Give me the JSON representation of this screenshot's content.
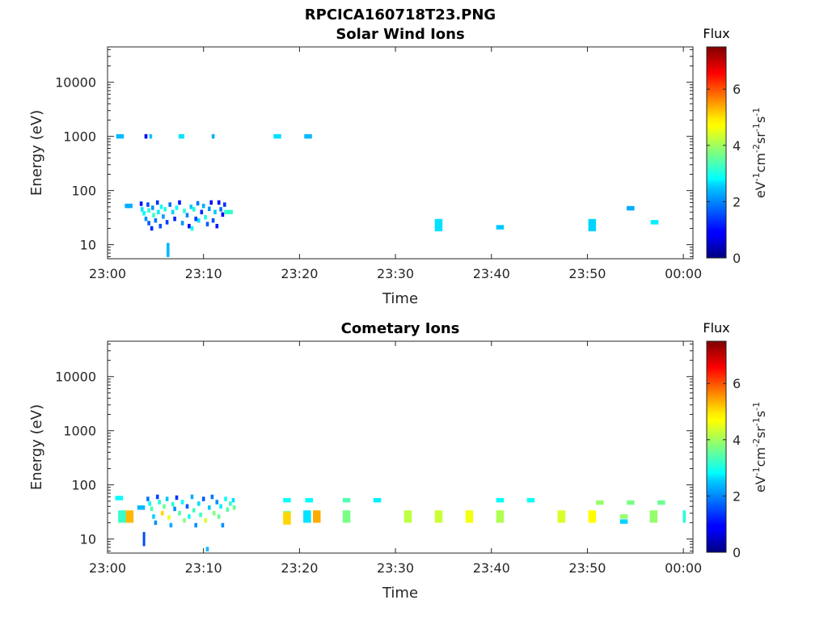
{
  "figure": {
    "title": "RPCICA160718T23.PNG"
  },
  "colorbar": {
    "label_main": "eV",
    "sup1": "-1",
    "cm": "cm",
    "sup2": "-2",
    "sr": "sr",
    "sup3": "-1",
    "s": "s",
    "sup4": "-1",
    "title": "Flux",
    "ticks": [
      "0",
      "2",
      "4",
      "6"
    ],
    "range": [
      0,
      7.5
    ],
    "colormap": "jet"
  },
  "chart_data": [
    {
      "type": "heatmap",
      "title": "Solar Wind Ions",
      "xlabel": "Time",
      "ylabel": "Energy (eV)",
      "xticks": [
        "23:00",
        "23:10",
        "23:20",
        "23:30",
        "23:40",
        "23:50",
        "00:00"
      ],
      "xlim_minutes": [
        0,
        61
      ],
      "yticks": [
        "10",
        "100",
        "1000",
        "10000"
      ],
      "ylim": [
        5.5,
        45000
      ],
      "yscale": "log",
      "cells": [
        {
          "t": 1.3,
          "e": 1000,
          "f": 2.3,
          "dt": 0.8
        },
        {
          "t": 2.2,
          "e": 52,
          "f": 2.2,
          "dt": 0.8
        },
        {
          "t": 3.5,
          "e": 57,
          "f": 1.0
        },
        {
          "t": 3.6,
          "e": 45,
          "f": 2.6
        },
        {
          "t": 3.8,
          "e": 38,
          "f": 2.8
        },
        {
          "t": 4.0,
          "e": 30,
          "f": 2.0
        },
        {
          "t": 4.0,
          "e": 1000,
          "f": 1.0
        },
        {
          "t": 4.2,
          "e": 55,
          "f": 1.5
        },
        {
          "t": 4.3,
          "e": 25,
          "f": 1.6
        },
        {
          "t": 4.3,
          "e": 43,
          "f": 3.0
        },
        {
          "t": 4.5,
          "e": 1000,
          "f": 2.4
        },
        {
          "t": 4.6,
          "e": 20,
          "f": 1.2
        },
        {
          "t": 4.7,
          "e": 48,
          "f": 2.0
        },
        {
          "t": 4.8,
          "e": 35,
          "f": 3.2
        },
        {
          "t": 5.0,
          "e": 28,
          "f": 1.8
        },
        {
          "t": 5.2,
          "e": 60,
          "f": 1.3
        },
        {
          "t": 5.3,
          "e": 40,
          "f": 2.7
        },
        {
          "t": 5.5,
          "e": 22,
          "f": 1.5
        },
        {
          "t": 5.6,
          "e": 50,
          "f": 2.9
        },
        {
          "t": 5.8,
          "e": 33,
          "f": 2.1
        },
        {
          "t": 6.0,
          "e": 45,
          "f": 3.0
        },
        {
          "t": 6.2,
          "e": 26,
          "f": 1.4
        },
        {
          "t": 6.3,
          "e": 8,
          "f": 2.3,
          "de": 1.35
        },
        {
          "t": 6.5,
          "e": 55,
          "f": 1.7
        },
        {
          "t": 6.8,
          "e": 40,
          "f": 2.5
        },
        {
          "t": 7.0,
          "e": 30,
          "f": 1.2
        },
        {
          "t": 7.2,
          "e": 48,
          "f": 2.8
        },
        {
          "t": 7.5,
          "e": 60,
          "f": 1.1
        },
        {
          "t": 7.7,
          "e": 1000,
          "f": 2.6,
          "dt": 0.6
        },
        {
          "t": 7.8,
          "e": 25,
          "f": 2.0
        },
        {
          "t": 8.0,
          "e": 42,
          "f": 3.1
        },
        {
          "t": 8.3,
          "e": 35,
          "f": 1.9
        },
        {
          "t": 8.5,
          "e": 22,
          "f": 1.0
        },
        {
          "t": 8.7,
          "e": 50,
          "f": 2.4
        },
        {
          "t": 8.8,
          "e": 20,
          "f": 2.9
        },
        {
          "t": 9.0,
          "e": 45,
          "f": 3.0
        },
        {
          "t": 9.2,
          "e": 30,
          "f": 1.4
        },
        {
          "t": 9.4,
          "e": 58,
          "f": 1.8
        },
        {
          "t": 9.5,
          "e": 28,
          "f": 2.6
        },
        {
          "t": 9.8,
          "e": 40,
          "f": 1.2
        },
        {
          "t": 10.0,
          "e": 52,
          "f": 2.2
        },
        {
          "t": 10.2,
          "e": 32,
          "f": 3.0
        },
        {
          "t": 10.4,
          "e": 24,
          "f": 1.6
        },
        {
          "t": 10.6,
          "e": 46,
          "f": 2.0
        },
        {
          "t": 10.8,
          "e": 60,
          "f": 1.0
        },
        {
          "t": 11.0,
          "e": 1000,
          "f": 2.2
        },
        {
          "t": 11.0,
          "e": 28,
          "f": 1.5
        },
        {
          "t": 11.2,
          "e": 40,
          "f": 2.4
        },
        {
          "t": 11.4,
          "e": 22,
          "f": 1.1
        },
        {
          "t": 11.6,
          "e": 60,
          "f": 1.0
        },
        {
          "t": 11.8,
          "e": 45,
          "f": 1.8
        },
        {
          "t": 12.0,
          "e": 36,
          "f": 1.0
        },
        {
          "t": 12.2,
          "e": 55,
          "f": 1.3
        },
        {
          "t": 12.6,
          "e": 40,
          "f": 3.2,
          "dt": 0.9
        },
        {
          "t": 17.7,
          "e": 1000,
          "f": 2.6,
          "dt": 0.8
        },
        {
          "t": 20.9,
          "e": 1000,
          "f": 2.3,
          "dt": 0.8
        },
        {
          "t": 34.5,
          "e": 23,
          "f": 2.6,
          "dt": 0.8,
          "de": 1.3
        },
        {
          "t": 40.9,
          "e": 21,
          "f": 2.4,
          "dt": 0.8
        },
        {
          "t": 50.5,
          "e": 23,
          "f": 2.5,
          "dt": 0.8,
          "de": 1.3
        },
        {
          "t": 54.5,
          "e": 47,
          "f": 2.2,
          "dt": 0.8
        },
        {
          "t": 57.0,
          "e": 26,
          "f": 2.7,
          "dt": 0.8
        }
      ]
    },
    {
      "type": "heatmap",
      "title": "Cometary Ions",
      "xlabel": "Time",
      "ylabel": "Energy (eV)",
      "xticks": [
        "23:00",
        "23:10",
        "23:20",
        "23:30",
        "23:40",
        "23:50",
        "00:00"
      ],
      "xlim_minutes": [
        0,
        61
      ],
      "yticks": [
        "10",
        "100",
        "1000",
        "10000"
      ],
      "ylim": [
        5.5,
        45000
      ],
      "yscale": "log",
      "cells": [
        {
          "t": 1.2,
          "e": 57,
          "f": 2.8,
          "dt": 0.8
        },
        {
          "t": 1.5,
          "e": 26,
          "f": 3.2,
          "dt": 0.8,
          "de": 1.3
        },
        {
          "t": 2.3,
          "e": 26,
          "f": 5.2,
          "dt": 0.8,
          "de": 1.3
        },
        {
          "t": 3.5,
          "e": 38,
          "f": 2.3,
          "dt": 0.8
        },
        {
          "t": 3.8,
          "e": 10,
          "f": 1.5,
          "dt": 0.25,
          "de": 1.35
        },
        {
          "t": 4.2,
          "e": 55,
          "f": 1.8
        },
        {
          "t": 4.4,
          "e": 45,
          "f": 2.9
        },
        {
          "t": 4.6,
          "e": 36,
          "f": 3.4
        },
        {
          "t": 4.8,
          "e": 26,
          "f": 2.5
        },
        {
          "t": 5.0,
          "e": 20,
          "f": 2.0
        },
        {
          "t": 5.2,
          "e": 60,
          "f": 1.4
        },
        {
          "t": 5.4,
          "e": 48,
          "f": 3.0
        },
        {
          "t": 5.7,
          "e": 30,
          "f": 5.0
        },
        {
          "t": 5.9,
          "e": 40,
          "f": 3.6
        },
        {
          "t": 6.2,
          "e": 55,
          "f": 2.4
        },
        {
          "t": 6.4,
          "e": 25,
          "f": 4.5
        },
        {
          "t": 6.6,
          "e": 18,
          "f": 2.2
        },
        {
          "t": 6.8,
          "e": 44,
          "f": 3.1
        },
        {
          "t": 7.0,
          "e": 36,
          "f": 2.0
        },
        {
          "t": 7.2,
          "e": 58,
          "f": 1.3
        },
        {
          "t": 7.5,
          "e": 30,
          "f": 3.4
        },
        {
          "t": 7.8,
          "e": 48,
          "f": 2.8
        },
        {
          "t": 8.0,
          "e": 22,
          "f": 3.8
        },
        {
          "t": 8.3,
          "e": 40,
          "f": 1.6
        },
        {
          "t": 8.5,
          "e": 26,
          "f": 2.9
        },
        {
          "t": 8.8,
          "e": 60,
          "f": 2.2
        },
        {
          "t": 9.0,
          "e": 34,
          "f": 3.3
        },
        {
          "t": 9.2,
          "e": 18,
          "f": 2.0
        },
        {
          "t": 9.5,
          "e": 45,
          "f": 2.6
        },
        {
          "t": 9.7,
          "e": 28,
          "f": 3.2
        },
        {
          "t": 10.0,
          "e": 55,
          "f": 1.6
        },
        {
          "t": 10.2,
          "e": 22,
          "f": 4.4
        },
        {
          "t": 10.4,
          "e": 6.5,
          "f": 2.3
        },
        {
          "t": 10.6,
          "e": 38,
          "f": 2.4
        },
        {
          "t": 10.9,
          "e": 60,
          "f": 1.8
        },
        {
          "t": 11.1,
          "e": 30,
          "f": 3.8
        },
        {
          "t": 11.4,
          "e": 48,
          "f": 2.0
        },
        {
          "t": 11.6,
          "e": 26,
          "f": 3.6
        },
        {
          "t": 11.8,
          "e": 40,
          "f": 2.7
        },
        {
          "t": 12.0,
          "e": 18,
          "f": 2.0
        },
        {
          "t": 12.3,
          "e": 55,
          "f": 2.9
        },
        {
          "t": 12.5,
          "e": 35,
          "f": 3.5
        },
        {
          "t": 12.8,
          "e": 45,
          "f": 3.2
        },
        {
          "t": 13.1,
          "e": 52,
          "f": 2.6
        },
        {
          "t": 13.2,
          "e": 38,
          "f": 3.6
        },
        {
          "t": 18.7,
          "e": 30,
          "f": 3.8,
          "dt": 0.8
        },
        {
          "t": 18.7,
          "e": 52,
          "f": 2.9,
          "dt": 0.8
        },
        {
          "t": 18.7,
          "e": 24,
          "f": 5.0,
          "dt": 0.8,
          "de": 1.3
        },
        {
          "t": 21.0,
          "e": 52,
          "f": 2.8,
          "dt": 0.8
        },
        {
          "t": 20.8,
          "e": 26,
          "f": 2.6,
          "dt": 0.8,
          "de": 1.3
        },
        {
          "t": 21.8,
          "e": 26,
          "f": 5.3,
          "dt": 0.8,
          "de": 1.3
        },
        {
          "t": 24.9,
          "e": 52,
          "f": 3.4,
          "dt": 0.8
        },
        {
          "t": 24.9,
          "e": 26,
          "f": 3.7,
          "dt": 0.8,
          "de": 1.3
        },
        {
          "t": 28.1,
          "e": 52,
          "f": 2.7,
          "dt": 0.8
        },
        {
          "t": 31.3,
          "e": 26,
          "f": 4.2,
          "dt": 0.8,
          "de": 1.3
        },
        {
          "t": 34.5,
          "e": 26,
          "f": 4.3,
          "dt": 0.8,
          "de": 1.3
        },
        {
          "t": 37.7,
          "e": 26,
          "f": 4.6,
          "dt": 0.8,
          "de": 1.3
        },
        {
          "t": 40.9,
          "e": 52,
          "f": 2.8,
          "dt": 0.8
        },
        {
          "t": 40.9,
          "e": 26,
          "f": 4.1,
          "dt": 0.8,
          "de": 1.3
        },
        {
          "t": 44.1,
          "e": 52,
          "f": 2.9,
          "dt": 0.8
        },
        {
          "t": 47.3,
          "e": 26,
          "f": 4.4,
          "dt": 0.8,
          "de": 1.3
        },
        {
          "t": 50.5,
          "e": 26,
          "f": 4.7,
          "dt": 0.8,
          "de": 1.3
        },
        {
          "t": 51.3,
          "e": 47,
          "f": 3.9,
          "dt": 0.8
        },
        {
          "t": 53.8,
          "e": 26,
          "f": 3.9,
          "dt": 0.8
        },
        {
          "t": 53.8,
          "e": 21,
          "f": 2.5,
          "dt": 0.8
        },
        {
          "t": 54.5,
          "e": 47,
          "f": 3.7,
          "dt": 0.8
        },
        {
          "t": 56.9,
          "e": 26,
          "f": 3.9,
          "dt": 0.8,
          "de": 1.3
        },
        {
          "t": 57.7,
          "e": 47,
          "f": 3.6,
          "dt": 0.8
        },
        {
          "t": 60.1,
          "e": 26,
          "f": 3.1,
          "dt": 0.3,
          "de": 1.3
        }
      ]
    }
  ]
}
